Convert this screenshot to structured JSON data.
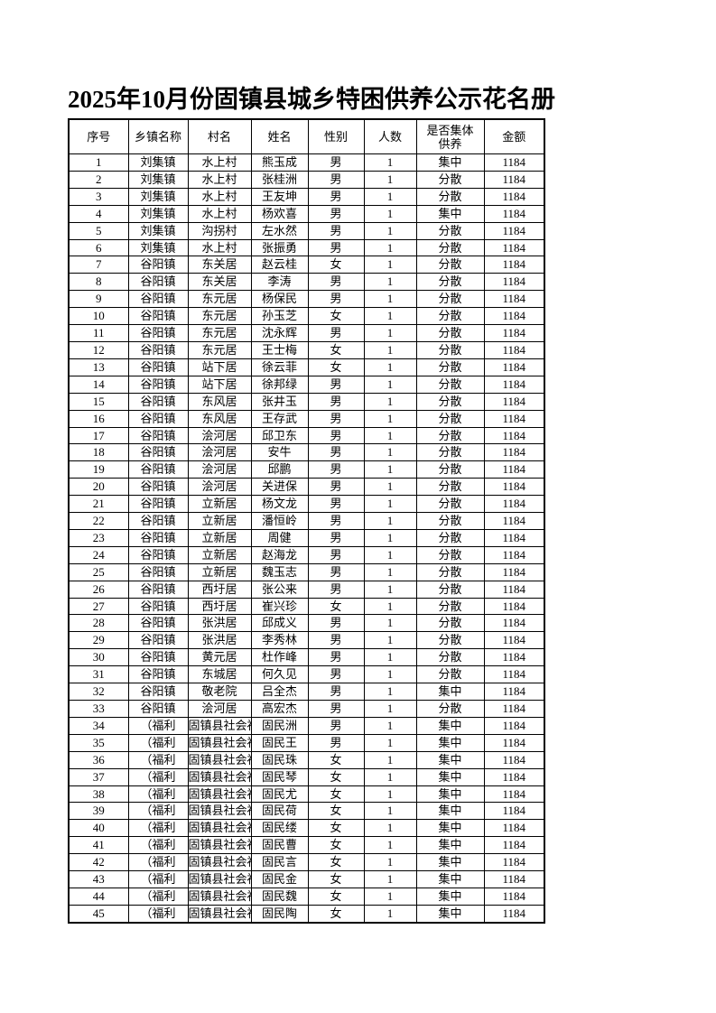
{
  "title": "2025年10月份固镇县城乡特困供养公示花名册",
  "colors": {
    "border": "#000000",
    "text": "#000000",
    "background": "#ffffff"
  },
  "table": {
    "headers": [
      "序号",
      "乡镇名称",
      "村名",
      "姓名",
      "性别",
      "人数",
      "是否集体供养",
      "金额"
    ],
    "rows": [
      {
        "no": "1",
        "town": "刘集镇",
        "village": "水上村",
        "name": "熊玉成",
        "gender": "男",
        "count": "1",
        "mode": "集中",
        "amount": "1184"
      },
      {
        "no": "2",
        "town": "刘集镇",
        "village": "水上村",
        "name": "张桂洲",
        "gender": "男",
        "count": "1",
        "mode": "分散",
        "amount": "1184"
      },
      {
        "no": "3",
        "town": "刘集镇",
        "village": "水上村",
        "name": "王友坤",
        "gender": "男",
        "count": "1",
        "mode": "分散",
        "amount": "1184"
      },
      {
        "no": "4",
        "town": "刘集镇",
        "village": "水上村",
        "name": "杨欢喜",
        "gender": "男",
        "count": "1",
        "mode": "集中",
        "amount": "1184"
      },
      {
        "no": "5",
        "town": "刘集镇",
        "village": "沟拐村",
        "name": "左水然",
        "gender": "男",
        "count": "1",
        "mode": "分散",
        "amount": "1184"
      },
      {
        "no": "6",
        "town": "刘集镇",
        "village": "水上村",
        "name": "张振勇",
        "gender": "男",
        "count": "1",
        "mode": "分散",
        "amount": "1184"
      },
      {
        "no": "7",
        "town": "谷阳镇",
        "village": "东关居",
        "name": "赵云桂",
        "gender": "女",
        "count": "1",
        "mode": "分散",
        "amount": "1184"
      },
      {
        "no": "8",
        "town": "谷阳镇",
        "village": "东关居",
        "name": "李涛",
        "gender": "男",
        "count": "1",
        "mode": "分散",
        "amount": "1184"
      },
      {
        "no": "9",
        "town": "谷阳镇",
        "village": "东元居",
        "name": "杨保民",
        "gender": "男",
        "count": "1",
        "mode": "分散",
        "amount": "1184"
      },
      {
        "no": "10",
        "town": "谷阳镇",
        "village": "东元居",
        "name": "孙玉芝",
        "gender": "女",
        "count": "1",
        "mode": "分散",
        "amount": "1184"
      },
      {
        "no": "11",
        "town": "谷阳镇",
        "village": "东元居",
        "name": "沈永辉",
        "gender": "男",
        "count": "1",
        "mode": "分散",
        "amount": "1184"
      },
      {
        "no": "12",
        "town": "谷阳镇",
        "village": "东元居",
        "name": "王士梅",
        "gender": "女",
        "count": "1",
        "mode": "分散",
        "amount": "1184",
        "styles": {
          "name": "lg left"
        }
      },
      {
        "no": "13",
        "town": "谷阳镇",
        "village": "站下居",
        "name": "徐云菲",
        "gender": "女",
        "count": "1",
        "mode": "分散",
        "amount": "1184"
      },
      {
        "no": "14",
        "town": "谷阳镇",
        "village": "站下居",
        "name": "徐邦绿",
        "gender": "男",
        "count": "1",
        "mode": "分散",
        "amount": "1184"
      },
      {
        "no": "15",
        "town": "谷阳镇",
        "village": "东风居",
        "name": "张井玉",
        "gender": "男",
        "count": "1",
        "mode": "分散",
        "amount": "1184"
      },
      {
        "no": "16",
        "town": "谷阳镇",
        "village": "东风居",
        "name": "王存武",
        "gender": "男",
        "count": "1",
        "mode": "分散",
        "amount": "1184"
      },
      {
        "no": "17",
        "town": "谷阳镇",
        "village": "浍河居",
        "name": "邱卫东",
        "gender": "男",
        "count": "1",
        "mode": "分散",
        "amount": "1184"
      },
      {
        "no": "18",
        "town": "谷阳镇",
        "village": "浍河居",
        "name": "安牛",
        "gender": "男",
        "count": "1",
        "mode": "分散",
        "amount": "1184"
      },
      {
        "no": "19",
        "town": "谷阳镇",
        "village": "浍河居",
        "name": "邱鹏",
        "gender": "男",
        "count": "1",
        "mode": "分散",
        "amount": "1184"
      },
      {
        "no": "20",
        "town": "谷阳镇",
        "village": "浍河居",
        "name": "关进保",
        "gender": "男",
        "count": "1",
        "mode": "分散",
        "amount": "1184"
      },
      {
        "no": "21",
        "town": "谷阳镇",
        "village": "立新居",
        "name": "杨文龙",
        "gender": "男",
        "count": "1",
        "mode": "分散",
        "amount": "1184"
      },
      {
        "no": "22",
        "town": "谷阳镇",
        "village": "立新居",
        "name": "潘恒岭",
        "gender": "男",
        "count": "1",
        "mode": "分散",
        "amount": "1184",
        "styles": {
          "name": "sm"
        }
      },
      {
        "no": "23",
        "town": "谷阳镇",
        "village": "立新居",
        "name": "周健",
        "gender": "男",
        "count": "1",
        "mode": "分散",
        "amount": "1184",
        "styles": {
          "name": "lg"
        }
      },
      {
        "no": "24",
        "town": "谷阳镇",
        "village": "立新居",
        "name": "赵海龙",
        "gender": "男",
        "count": "1",
        "mode": "分散",
        "amount": "1184",
        "styles": {
          "name": "lg"
        }
      },
      {
        "no": "25",
        "town": "谷阳镇",
        "village": "立新居",
        "name": "魏玉志",
        "gender": "男",
        "count": "1",
        "mode": "分散",
        "amount": "1184",
        "styles": {
          "name": "lg left"
        }
      },
      {
        "no": "26",
        "town": "谷阳镇",
        "village": "西圩居",
        "name": "张公来",
        "gender": "男",
        "count": "1",
        "mode": "分散",
        "amount": "1184"
      },
      {
        "no": "27",
        "town": "谷阳镇",
        "village": "西圩居",
        "name": "崔兴珍",
        "gender": "女",
        "count": "1",
        "mode": "分散",
        "amount": "1184"
      },
      {
        "no": "28",
        "town": "谷阳镇",
        "village": "张洪居",
        "name": "邱成义",
        "gender": "男",
        "count": "1",
        "mode": "分散",
        "amount": "1184"
      },
      {
        "no": "29",
        "town": "谷阳镇",
        "village": "张洪居",
        "name": "李秀林",
        "gender": "男",
        "count": "1",
        "mode": "分散",
        "amount": "1184"
      },
      {
        "no": "30",
        "town": "谷阳镇",
        "village": "黄元居",
        "name": "杜作峰",
        "gender": "男",
        "count": "1",
        "mode": "分散",
        "amount": "1184"
      },
      {
        "no": "31",
        "town": "谷阳镇",
        "village": "东城居",
        "name": "何久见",
        "gender": "男",
        "count": "1",
        "mode": "分散",
        "amount": "1184",
        "styles": {
          "name": "lg"
        }
      },
      {
        "no": "32",
        "town": "谷阳镇",
        "village": "敬老院",
        "name": "吕全杰",
        "gender": "男",
        "count": "1",
        "mode": "集中",
        "amount": "1184",
        "styles": {
          "name": "lg",
          "mode": "lg"
        }
      },
      {
        "no": "33",
        "town": "谷阳镇",
        "village": "浍河居",
        "name": "高宏杰",
        "gender": "男",
        "count": "1",
        "mode": "分散",
        "amount": "1184",
        "styles": {
          "name": "lg left",
          "mode": "lg",
          "amount": "lg"
        }
      },
      {
        "no": "34",
        "town": "（福利",
        "village": "固镇县社会福利院",
        "name": "固民洲",
        "gender": "男",
        "count": "1",
        "mode": "集中",
        "amount": "1184",
        "styles": {
          "town": "right",
          "village": "clip"
        }
      },
      {
        "no": "35",
        "town": "（福利",
        "village": "固镇县社会福利院",
        "name": "固民王",
        "gender": "男",
        "count": "1",
        "mode": "集中",
        "amount": "1184",
        "styles": {
          "town": "right",
          "village": "clip"
        }
      },
      {
        "no": "36",
        "town": "（福利",
        "village": "固镇县社会福利院",
        "name": "固民珠",
        "gender": "女",
        "count": "1",
        "mode": "集中",
        "amount": "1184",
        "styles": {
          "town": "right",
          "village": "clip"
        }
      },
      {
        "no": "37",
        "town": "（福利",
        "village": "固镇县社会福利院",
        "name": "固民琴",
        "gender": "女",
        "count": "1",
        "mode": "集中",
        "amount": "1184",
        "styles": {
          "town": "right",
          "village": "clip"
        }
      },
      {
        "no": "38",
        "town": "（福利",
        "village": "固镇县社会福利院",
        "name": "固民尤",
        "gender": "女",
        "count": "1",
        "mode": "集中",
        "amount": "1184",
        "styles": {
          "town": "right",
          "village": "clip"
        }
      },
      {
        "no": "39",
        "town": "（福利",
        "village": "固镇县社会福利院",
        "name": "固民荷",
        "gender": "女",
        "count": "1",
        "mode": "集中",
        "amount": "1184",
        "styles": {
          "town": "right",
          "village": "clip"
        }
      },
      {
        "no": "40",
        "town": "（福利",
        "village": "固镇县社会福利院",
        "name": "固民缕",
        "gender": "女",
        "count": "1",
        "mode": "集中",
        "amount": "1184",
        "styles": {
          "town": "right",
          "village": "clip"
        }
      },
      {
        "no": "41",
        "town": "（福利",
        "village": "固镇县社会福利院",
        "name": "固民曹",
        "gender": "女",
        "count": "1",
        "mode": "集中",
        "amount": "1184",
        "styles": {
          "town": "right",
          "village": "clip"
        }
      },
      {
        "no": "42",
        "town": "（福利",
        "village": "固镇县社会福利院",
        "name": "固民言",
        "gender": "女",
        "count": "1",
        "mode": "集中",
        "amount": "1184",
        "styles": {
          "town": "right",
          "village": "clip"
        }
      },
      {
        "no": "43",
        "town": "（福利",
        "village": "固镇县社会福利院",
        "name": "固民金",
        "gender": "女",
        "count": "1",
        "mode": "集中",
        "amount": "1184",
        "styles": {
          "town": "right",
          "village": "clip"
        }
      },
      {
        "no": "44",
        "town": "（福利",
        "village": "固镇县社会福利院",
        "name": "固民魏",
        "gender": "女",
        "count": "1",
        "mode": "集中",
        "amount": "1184",
        "styles": {
          "town": "right",
          "village": "clip"
        }
      },
      {
        "no": "45",
        "town": "（福利",
        "village": "固镇县社会福利院",
        "name": "固民陶",
        "gender": "女",
        "count": "1",
        "mode": "集中",
        "amount": "1184",
        "styles": {
          "town": "right",
          "village": "clip"
        }
      }
    ]
  }
}
